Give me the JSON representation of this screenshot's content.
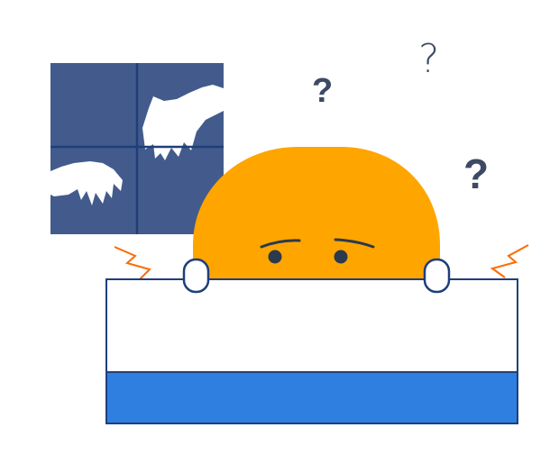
{
  "illustration": {
    "subject": "worried-character-hiding-behind-desk",
    "colors": {
      "background": "#ffffff",
      "window_fill": "#435b8c",
      "window_frame": "#1f3f7a",
      "hand_fill": "#ffffff",
      "character_fill": "#ffa500",
      "face_features": "#2b3a4d",
      "finger_outline": "#1f3f7a",
      "desk_top": "#ffffff",
      "desk_stripe": "#2f7fe0",
      "desk_outline": "#1f3f7a",
      "shake_lines": "#ff6a00",
      "question_marks": "#3d4a63"
    },
    "icons": [
      "window-icon",
      "reaching-hand-icon",
      "character-head-icon",
      "desk-icon",
      "question-mark-icon",
      "shake-lines-icon"
    ]
  },
  "question_marks": [
    {
      "text": "?",
      "style": "bold"
    },
    {
      "text": "?",
      "style": "thin"
    },
    {
      "text": "?",
      "style": "bold"
    }
  ]
}
